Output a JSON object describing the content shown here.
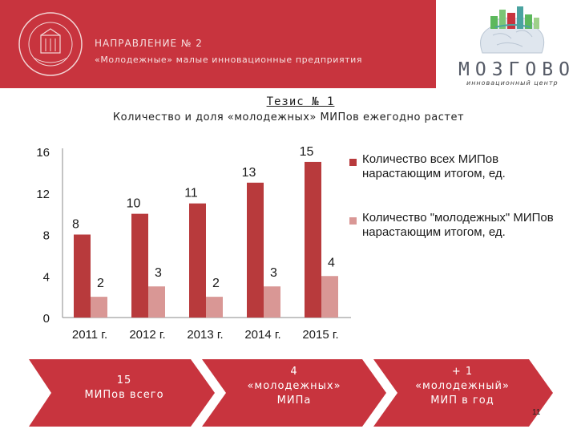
{
  "header": {
    "line1": "НАПРАВЛЕНИЕ № 2",
    "line2": "«Молодежные» малые инновационные предприятия",
    "brand_name": "МОЗГОВО",
    "brand_sub": "инновационный центр",
    "colors": {
      "red": "#c8343e",
      "green": "#5cb85c",
      "gray": "#555a66"
    }
  },
  "thesis": "Тезис № 1",
  "subtitle": "Количество и доля «молодежных» МИПов ежегодно растет",
  "chart_data": {
    "type": "bar",
    "categories": [
      "2011 г.",
      "2012 г.",
      "2013 г.",
      "2014 г.",
      "2015 г."
    ],
    "series": [
      {
        "name": "Количество всех МИПов нарастающим итогом, ед.",
        "values": [
          8,
          10,
          11,
          13,
          15
        ],
        "color": "#b83a3c"
      },
      {
        "name": "Количество \"молодежных\" МИПов нарастающим итогом, ед.",
        "values": [
          2,
          3,
          2,
          3,
          4
        ],
        "color": "#d99795"
      }
    ],
    "yticks": [
      0,
      4,
      8,
      12,
      16
    ],
    "ylim": [
      0,
      16
    ],
    "grid": false,
    "legend": "right"
  },
  "arrows": [
    {
      "line1": "15",
      "line2": "МИПов всего",
      "color": "#c8343e"
    },
    {
      "line1": "4",
      "line2": "«молодежных»",
      "line3": "МИПа",
      "color": "#c8343e"
    },
    {
      "line1": "+ 1",
      "line2": "«молодежный»",
      "line3": "МИП в год",
      "color": "#c8343e"
    }
  ],
  "page_number": "11"
}
